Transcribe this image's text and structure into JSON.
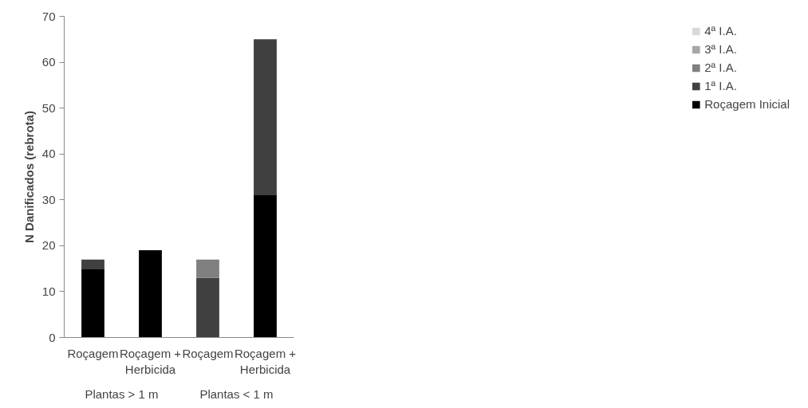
{
  "chart_data": {
    "type": "bar",
    "stacked": true,
    "ylabel": "N Danificados (rebrota)",
    "categories": [
      "Roçagem",
      "Roçagem + Herbicida",
      "Roçagem",
      "Roçagem + Herbicida"
    ],
    "series": [
      {
        "name": "Roçagem Inicial",
        "color": "#000000",
        "values": [
          15,
          19,
          0,
          31
        ]
      },
      {
        "name": "1ª I.A.",
        "color": "#404040",
        "values": [
          2,
          0,
          13,
          34
        ]
      },
      {
        "name": "2ª I.A.",
        "color": "#808080",
        "values": [
          0,
          0,
          4,
          0
        ]
      },
      {
        "name": "3ª I.A.",
        "color": "#a6a6a6",
        "values": [
          0,
          0,
          0,
          0
        ]
      },
      {
        "name": "4ª I.A.",
        "color": "#d9d9d9",
        "values": [
          0,
          0,
          0,
          0
        ]
      }
    ],
    "annotations": [
      "Plantas > 1 m",
      "Plantas < 1 m"
    ],
    "ylim": [
      0,
      70
    ],
    "yticks": [
      0,
      10,
      20,
      30,
      40,
      50,
      60,
      70
    ],
    "grid": false,
    "legend": "right"
  }
}
